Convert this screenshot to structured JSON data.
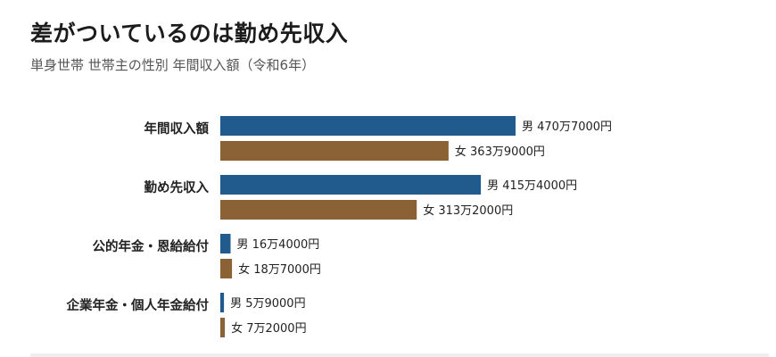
{
  "title": "差がついているのは勤め先収入",
  "subtitle": "単身世帯 世帯主の性別 年間収入額（令和6年）",
  "colors": {
    "male": "#215a8c",
    "female": "#8b6236"
  },
  "chart_data": {
    "type": "bar",
    "orientation": "horizontal",
    "unit": "円",
    "categories": [
      "年間収入額",
      "勤め先収入",
      "公的年金・恩給給付",
      "企業年金・個人年金給付"
    ],
    "series": [
      {
        "name": "男",
        "values": [
          4707000,
          4154000,
          164000,
          59000
        ],
        "labels": [
          "男 470万7000円",
          "男 415万4000円",
          "男 16万4000円",
          "男 5万9000円"
        ]
      },
      {
        "name": "女",
        "values": [
          3639000,
          3132000,
          187000,
          72000
        ],
        "labels": [
          "女 363万9000円",
          "女 313万2000円",
          "女 18万7000円",
          "女 7万2000円"
        ]
      }
    ],
    "grid": false,
    "legend": "none"
  }
}
